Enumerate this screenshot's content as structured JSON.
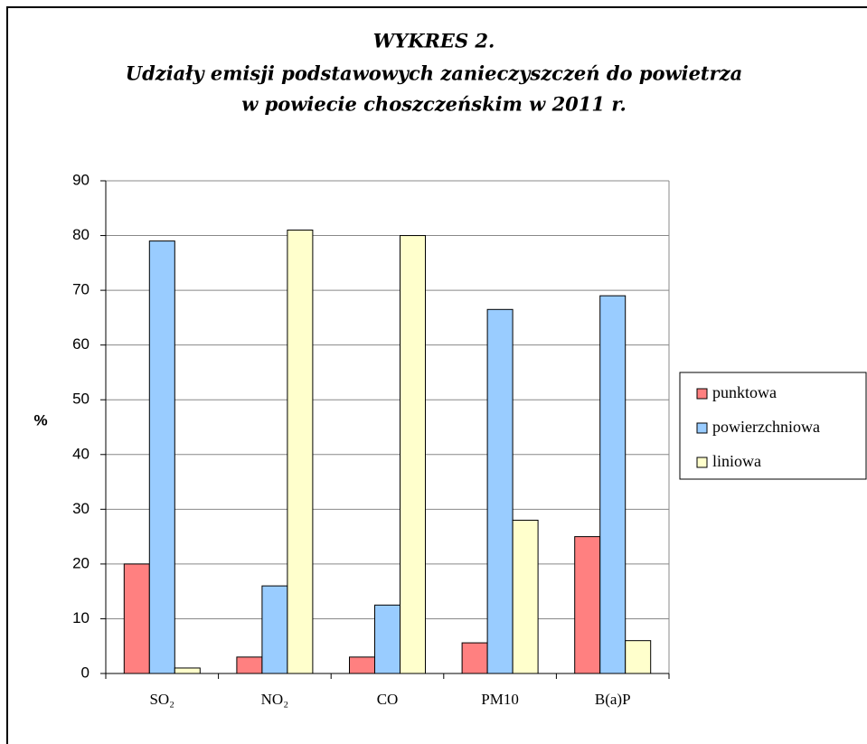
{
  "chart_data": {
    "type": "bar",
    "title": [
      "WYKRES 2.",
      "Udziały emisji podstawowych zanieczyszczeń do powietrza",
      "w powiecie choszczeńskim w 2011 r."
    ],
    "y_label": "%",
    "categories": [
      "SO₂",
      "NO₂",
      "CO",
      "PM10",
      "B(a)P"
    ],
    "series": [
      {
        "name": "punktowa",
        "color": "#ff8080",
        "values": [
          20,
          3,
          3,
          5.6,
          25
        ]
      },
      {
        "name": "powierzchniowa",
        "color": "#99ccff",
        "values": [
          79,
          16,
          12.5,
          66.5,
          69
        ]
      },
      {
        "name": "liniowa",
        "color": "#ffffcc",
        "values": [
          1,
          81,
          80,
          28,
          6
        ]
      }
    ],
    "ylim": [
      0,
      90
    ],
    "yticks": [
      0,
      10,
      20,
      30,
      40,
      50,
      60,
      70,
      80,
      90
    ],
    "grid": true,
    "legend": "right"
  }
}
